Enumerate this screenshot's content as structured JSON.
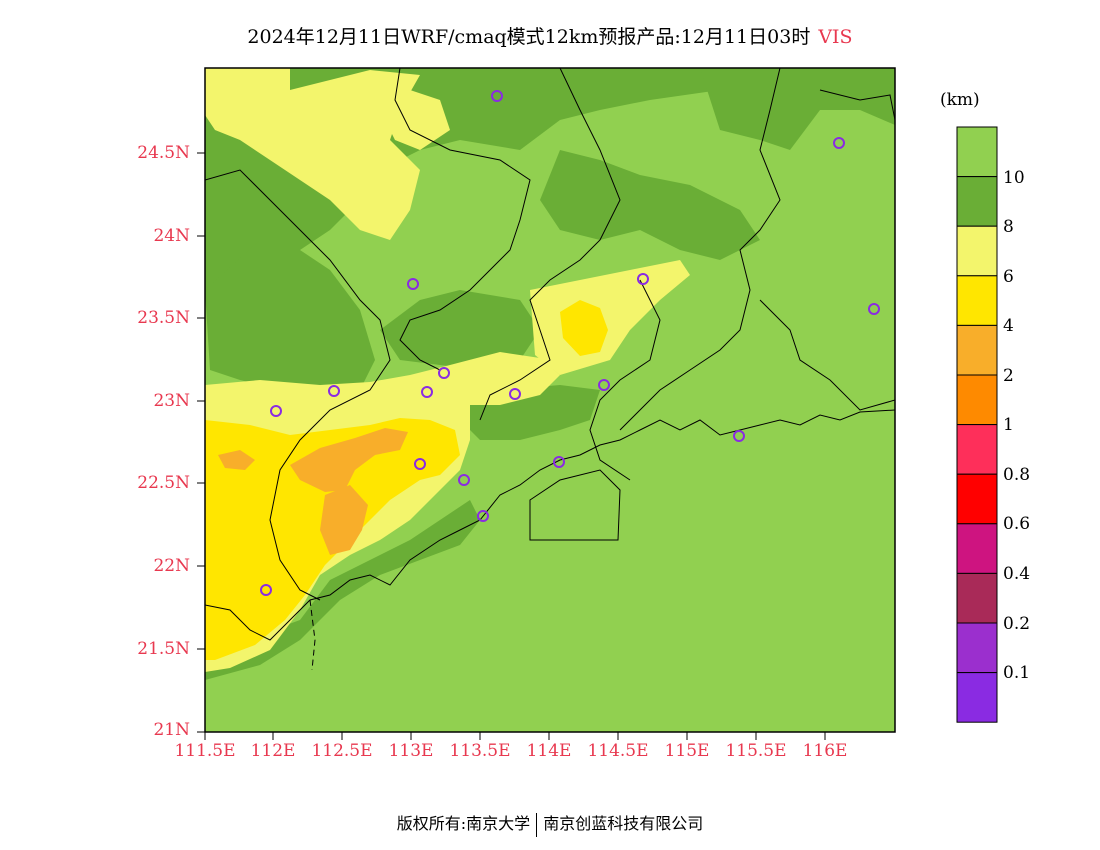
{
  "title": {
    "main": "2024年12月11日WRF/cmaq模式12km预报产品:12月11日03时",
    "variable": "VIS"
  },
  "map": {
    "y_axis_labels": [
      "24.5N",
      "24N",
      "23.5N",
      "23N",
      "22.5N",
      "22N",
      "21.5N",
      "21N"
    ],
    "x_axis_labels": [
      "111.5E",
      "112E",
      "112.5E",
      "113E",
      "113.5E",
      "114E",
      "114.5E",
      "115E",
      "115.5E",
      "116E"
    ],
    "region_colors": {
      "above_10": "#91d050",
      "8_to_10": "#6aae36",
      "6_to_8": "#f3f56c",
      "4_to_6": "#ffe600",
      "2_to_4": "#f8ae2a"
    }
  },
  "legend": {
    "unit": "(km)",
    "labels": [
      "10",
      "8",
      "6",
      "4",
      "2",
      "1",
      "0.8",
      "0.6",
      "0.4",
      "0.2",
      "0.1"
    ],
    "colors": [
      "#91d050",
      "#6aae36",
      "#f3f56c",
      "#ffe600",
      "#f8ae2a",
      "#fe8a00",
      "#fe2f5a",
      "#ff0000",
      "#ce1480",
      "#a92a58",
      "#9b2fce",
      "#8a2be2"
    ]
  },
  "footer": {
    "left": "版权所有:南京大学",
    "right": "南京创蓝科技有限公司"
  }
}
